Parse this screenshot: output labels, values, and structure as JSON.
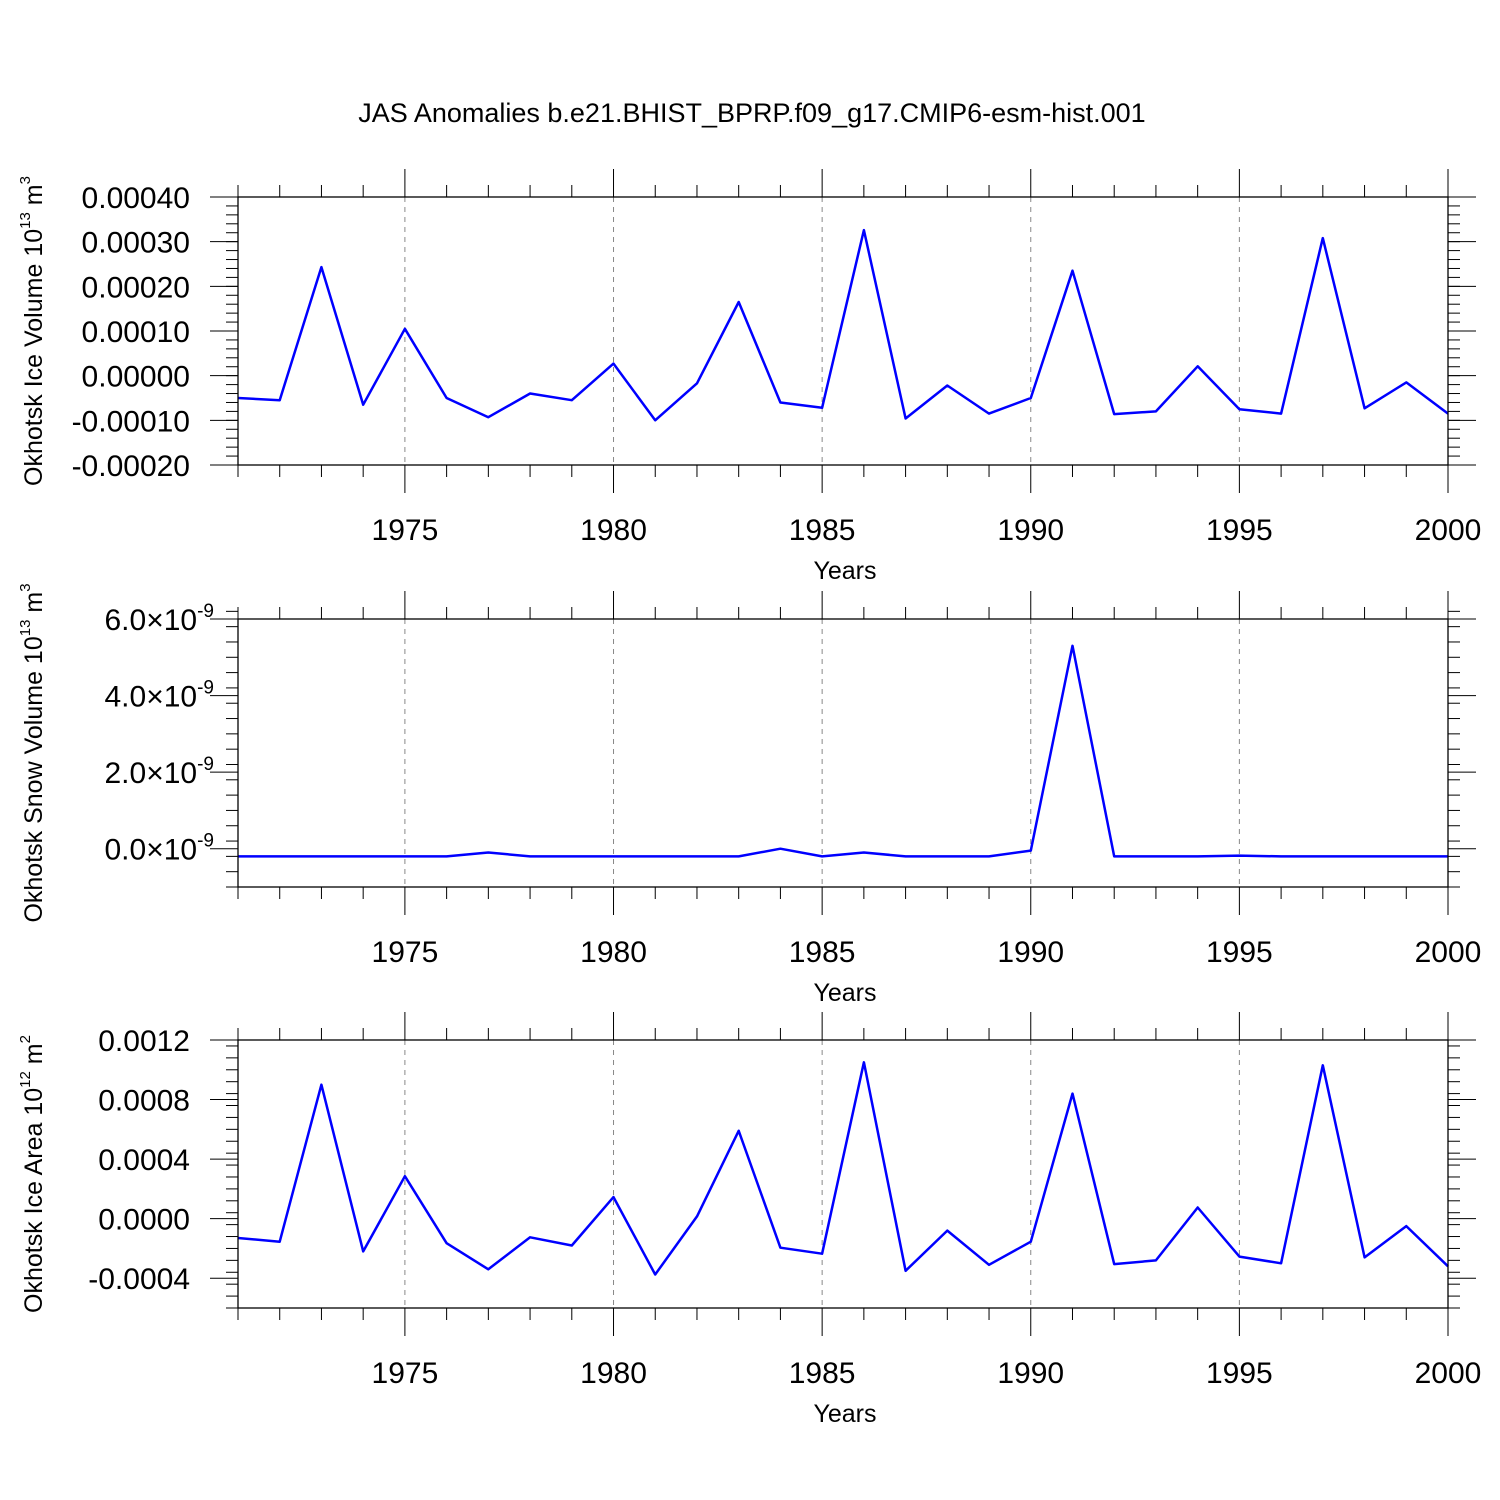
{
  "figure_title": "JAS Anomalies b.e21.BHIST_BPRP.f09_g17.CMIP6-esm-hist.001",
  "colors": {
    "line": "#0000ff",
    "axis": "#000000",
    "grid": "#888888"
  },
  "chart_data": [
    {
      "type": "line",
      "title": "JAS Anomalies b.e21.BHIST_BPRP.f09_g17.CMIP6-esm-hist.001",
      "ylabel": "Okhotsk Ice Volume 10",
      "ylabel_exp": "13",
      "ylabel_unit": " m",
      "ylabel_unit_exp": "3",
      "xlabel": "Years",
      "xlim": [
        1971,
        2000
      ],
      "ylim": [
        -0.0002,
        0.0004
      ],
      "ylabel_style": "plain",
      "yticks": [
        -0.0002,
        -0.0001,
        0.0,
        0.0001,
        0.0002,
        0.0003,
        0.0004
      ],
      "ytick_labels": [
        "-0.00020",
        "-0.00010",
        "0.00000",
        "0.00010",
        "0.00020",
        "0.00030",
        "0.00040"
      ],
      "xticks": [
        1975,
        1980,
        1985,
        1990,
        1995,
        2000
      ],
      "xtick_labels": [
        "1975",
        "1980",
        "1985",
        "1990",
        "1995",
        "2000"
      ],
      "grid": "vertical dashed at major x ticks",
      "x": [
        1971,
        1972,
        1973,
        1974,
        1975,
        1976,
        1977,
        1978,
        1979,
        1980,
        1981,
        1982,
        1983,
        1984,
        1985,
        1986,
        1987,
        1988,
        1989,
        1990,
        1991,
        1992,
        1993,
        1994,
        1995,
        1996,
        1997,
        1998,
        1999,
        2000
      ],
      "series": [
        {
          "name": "Okhotsk Ice Volume",
          "values": [
            -5e-05,
            -5.5e-05,
            0.000243,
            -6.5e-05,
            0.000105,
            -5e-05,
            -9.3e-05,
            -4e-05,
            -5.5e-05,
            2.7e-05,
            -0.0001,
            -1.7e-05,
            0.000165,
            -6e-05,
            -7.2e-05,
            0.000326,
            -9.6e-05,
            -2.2e-05,
            -8.5e-05,
            -5e-05,
            0.000235,
            -8.6e-05,
            -8e-05,
            2.1e-05,
            -7.5e-05,
            -8.5e-05,
            0.000308,
            -7.3e-05,
            -1.5e-05,
            -8.5e-05
          ]
        }
      ]
    },
    {
      "type": "line",
      "ylabel": "Okhotsk Snow Volume 10",
      "ylabel_exp": "13",
      "ylabel_unit": " m",
      "ylabel_unit_exp": "3",
      "xlabel": "Years",
      "xlim": [
        1971,
        2000
      ],
      "ylim": [
        -1e-09,
        6e-09
      ],
      "ylabel_style": "sci",
      "yticks": [
        0,
        2e-09,
        4e-09,
        6e-09
      ],
      "ytick_labels": [
        "0.0",
        "2.0",
        "4.0",
        "6.0"
      ],
      "ytick_multiplier": "×10",
      "ytick_exp": "-9",
      "xticks": [
        1975,
        1980,
        1985,
        1990,
        1995,
        2000
      ],
      "xtick_labels": [
        "1975",
        "1980",
        "1985",
        "1990",
        "1995",
        "2000"
      ],
      "grid": "vertical dashed at major x ticks",
      "x": [
        1971,
        1972,
        1973,
        1974,
        1975,
        1976,
        1977,
        1978,
        1979,
        1980,
        1981,
        1982,
        1983,
        1984,
        1985,
        1986,
        1987,
        1988,
        1989,
        1990,
        1991,
        1992,
        1993,
        1994,
        1995,
        1996,
        1997,
        1998,
        1999,
        2000
      ],
      "series": [
        {
          "name": "Okhotsk Snow Volume",
          "values": [
            -2e-10,
            -2e-10,
            -2e-10,
            -2e-10,
            -2e-10,
            -2e-10,
            -1e-10,
            -2e-10,
            -2e-10,
            -2e-10,
            -2e-10,
            -2e-10,
            -2e-10,
            0,
            -2e-10,
            -1e-10,
            -2e-10,
            -2e-10,
            -2e-10,
            -5e-11,
            5.3e-09,
            -2e-10,
            -2e-10,
            -2e-10,
            -1.8e-10,
            -2e-10,
            -2e-10,
            -2e-10,
            -2e-10,
            -2e-10
          ]
        }
      ]
    },
    {
      "type": "line",
      "ylabel": "Okhotsk Ice Area 10",
      "ylabel_exp": "12",
      "ylabel_unit": " m",
      "ylabel_unit_exp": "2",
      "xlabel": "Years",
      "xlim": [
        1971,
        2000
      ],
      "ylim": [
        -0.0006,
        0.0012
      ],
      "ylabel_style": "plain",
      "yticks": [
        -0.0004,
        0.0,
        0.0004,
        0.0008,
        0.0012
      ],
      "ytick_labels": [
        "-0.0004",
        "0.0000",
        "0.0004",
        "0.0008",
        "0.0012"
      ],
      "xticks": [
        1975,
        1980,
        1985,
        1990,
        1995,
        2000
      ],
      "xtick_labels": [
        "1975",
        "1980",
        "1985",
        "1990",
        "1995",
        "2000"
      ],
      "grid": "vertical dashed at major x ticks",
      "x": [
        1971,
        1972,
        1973,
        1974,
        1975,
        1976,
        1977,
        1978,
        1979,
        1980,
        1981,
        1982,
        1983,
        1984,
        1985,
        1986,
        1987,
        1988,
        1989,
        1990,
        1991,
        1992,
        1993,
        1994,
        1995,
        1996,
        1997,
        1998,
        1999,
        2000
      ],
      "series": [
        {
          "name": "Okhotsk Ice Area",
          "values": [
            -0.00013,
            -0.000155,
            0.0009,
            -0.00022,
            0.000285,
            -0.000165,
            -0.00034,
            -0.000125,
            -0.00018,
            0.000145,
            -0.000375,
            1.5e-05,
            0.00059,
            -0.000195,
            -0.000235,
            0.00105,
            -0.00035,
            -8e-05,
            -0.00031,
            -0.000155,
            0.00084,
            -0.000305,
            -0.00028,
            7.5e-05,
            -0.000255,
            -0.0003,
            0.00103,
            -0.00026,
            -5e-05,
            -0.00032
          ]
        }
      ]
    }
  ]
}
